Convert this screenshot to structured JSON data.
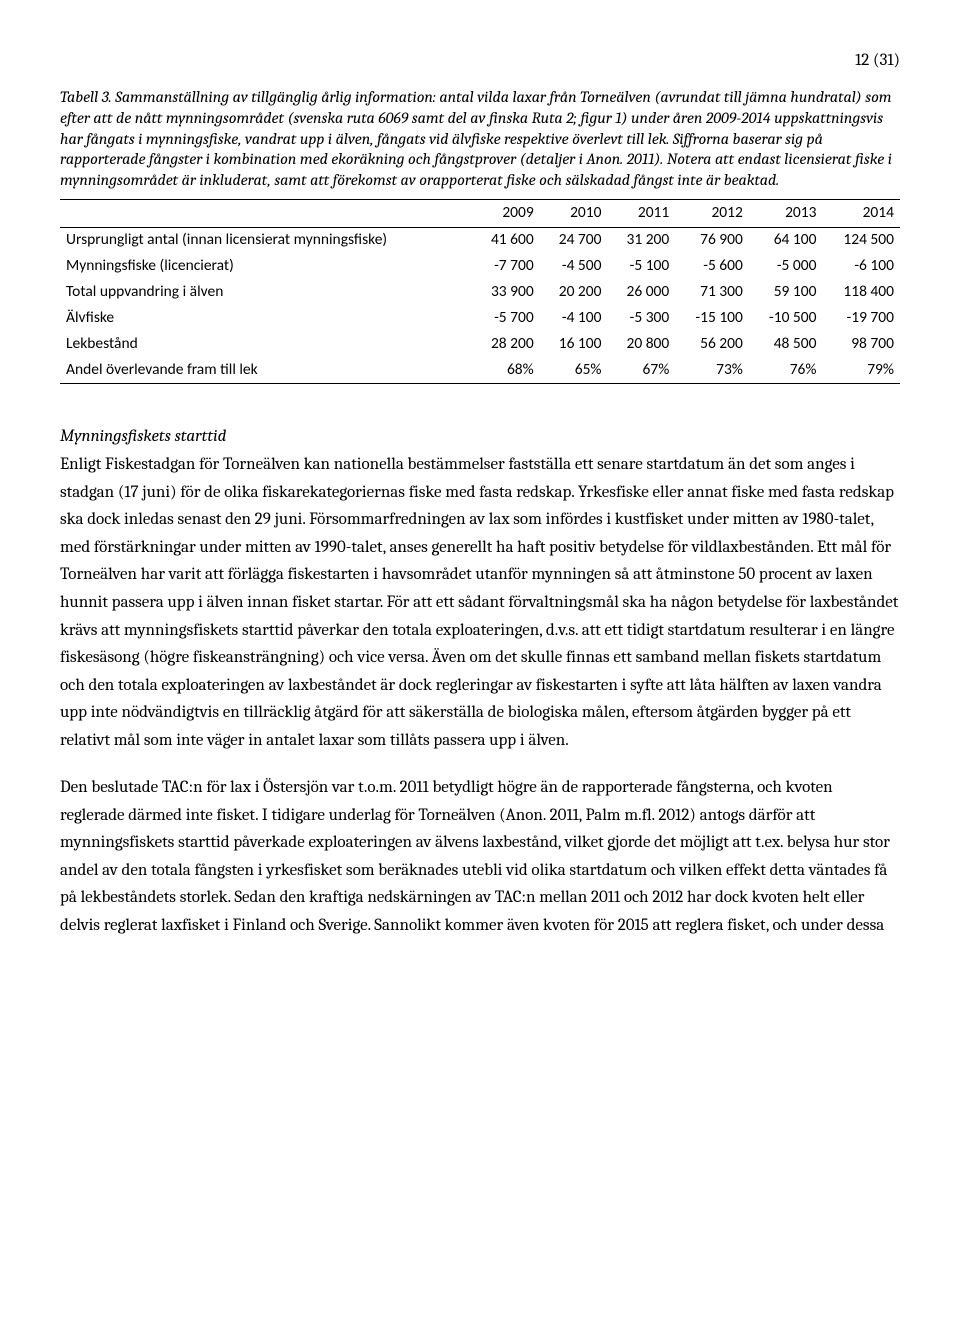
{
  "page_number": "12 (31)",
  "caption": {
    "label": "Tabell 3.",
    "text": " Sammanställning av tillgänglig årlig information: antal vilda laxar från Torneälven (avrundat till jämna hundratal) som efter att de nått mynningsområdet (svenska ruta 6069 samt del av finska Ruta 2; figur 1) under åren 2009-2014 uppskattningsvis har fångats i mynningsfiske, vandrat upp i älven, fångats vid älvfiske respektive överlevt till lek. Siffrorna baserar sig på rapporterade fångster i kombination med ekoräkning och fångstprover (detaljer i Anon. 2011). Notera att endast licensierat fiske i mynningsområdet är inkluderat, samt att förekomst av orapporterat fiske och sälskadad fångst inte är beaktad."
  },
  "table": {
    "columns": [
      "",
      "2009",
      "2010",
      "2011",
      "2012",
      "2013",
      "2014"
    ],
    "rows": [
      [
        "Ursprungligt antal (innan licensierat mynningsfiske)",
        "41 600",
        "24 700",
        "31 200",
        "76 900",
        "64 100",
        "124 500"
      ],
      [
        "Mynningsfiske (licencierat)",
        "-7 700",
        "-4 500",
        "-5 100",
        "-5 600",
        "-5 000",
        "-6 100"
      ],
      [
        "Total uppvandring i älven",
        "33 900",
        "20 200",
        "26 000",
        "71 300",
        "59 100",
        "118 400"
      ],
      [
        "Älvfiske",
        "-5 700",
        "-4 100",
        "-5 300",
        "-15 100",
        "-10 500",
        "-19 700"
      ],
      [
        "Lekbestånd",
        "28 200",
        "16 100",
        "20 800",
        "56 200",
        "48 500",
        "98 700"
      ],
      [
        "Andel överlevande fram till lek",
        "68%",
        "65%",
        "67%",
        "73%",
        "76%",
        "79%"
      ]
    ],
    "font_family": "Calibri",
    "font_size_pt": 11,
    "border_color": "#000000",
    "col_align": [
      "left",
      "right",
      "right",
      "right",
      "right",
      "right",
      "right"
    ]
  },
  "section_heading": "Mynningsfiskets starttid",
  "para1": "Enligt Fiskestadgan för Torneälven kan nationella bestämmelser fastställa ett senare startdatum än det som anges i stadgan (17 juni) för de olika fiskarekategoriernas fiske med fasta redskap. Yrkesfiske eller annat fiske med fasta redskap ska dock inledas senast den 29 juni. Försommarfredningen av lax som infördes i kustfisket under mitten av 1980-talet, med förstärkningar under mitten av 1990-talet, anses generellt ha haft positiv betydelse för vildlaxbestånden. Ett mål för Torneälven har varit att förlägga fiskestarten i havsområdet utanför mynningen så att åtminstone 50 procent av laxen hunnit passera upp i älven innan fisket startar. För att ett sådant förvaltningsmål ska ha någon betydelse för laxbeståndet krävs att mynningsfiskets starttid påverkar den totala exploateringen, d.v.s. att ett tidigt startdatum resulterar i en längre fiskesäsong (högre fiskeansträngning) och vice versa. Även om det skulle finnas ett samband mellan fiskets startdatum och den totala exploateringen av laxbeståndet är dock regleringar av fiskestarten i syfte att låta hälften av laxen vandra upp inte nödvändigtvis en tillräcklig åtgärd för att säkerställa de biologiska målen, eftersom åtgärden bygger på ett relativt mål som inte väger in antalet laxar som tillåts passera upp i älven.",
  "para2": "Den beslutade TAC:n för lax i Östersjön var t.o.m. 2011 betydligt högre än de rapporterade fångsterna, och kvoten reglerade därmed inte fisket. I tidigare underlag för Torneälven (Anon. 2011, Palm m.fl. 2012) antogs därför att mynningsfiskets starttid påverkade exploateringen av älvens laxbestånd, vilket gjorde det möjligt att t.ex. belysa hur stor andel av den totala fångsten i yrkesfisket som beräknades utebli vid olika startdatum och vilken effekt detta väntades få på lekbeståndets storlek. Sedan den kraftiga nedskärningen av TAC:n mellan 2011 och 2012 har dock kvoten helt eller delvis reglerat laxfisket i Finland och Sverige. Sannolikt kommer även kvoten för 2015 att reglera fisket, och under dessa"
}
